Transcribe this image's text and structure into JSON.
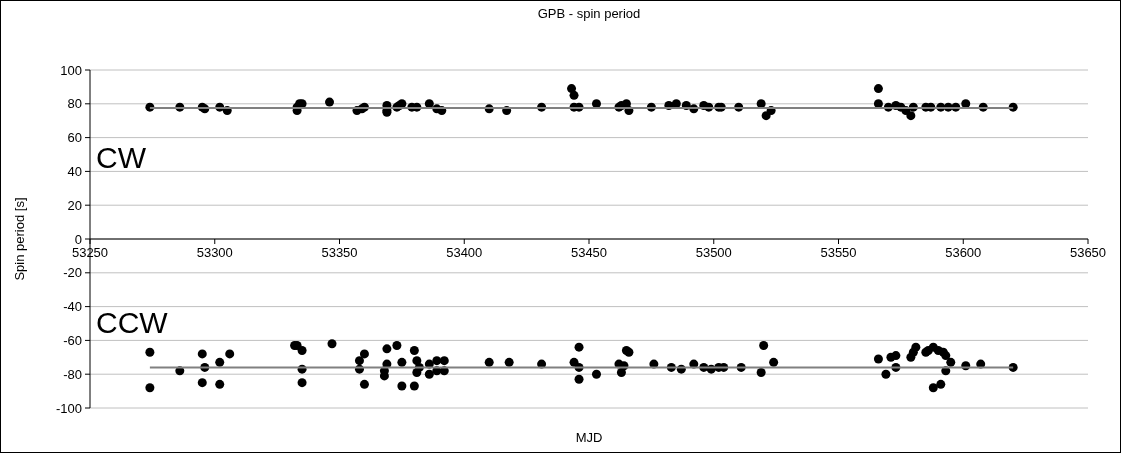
{
  "chart_data": {
    "type": "scatter",
    "title": "GPB - spin period",
    "xlabel": "MJD",
    "ylabel": "Spin period [s]",
    "annotations": [
      "CW",
      "CCW"
    ],
    "xlim": [
      53250,
      53650
    ],
    "xticks": [
      53250,
      53300,
      53350,
      53400,
      53450,
      53500,
      53550,
      53600,
      53650
    ],
    "ylim": [
      -100,
      100
    ],
    "yticks": [
      -100,
      -80,
      -60,
      -40,
      -20,
      0,
      20,
      40,
      60,
      80,
      100
    ],
    "grid": "y",
    "marker": "circle",
    "series": [
      {
        "color": "#000000",
        "x": [
          53274,
          53286,
          53295,
          53296,
          53302,
          53305,
          53333,
          53333,
          53334,
          53335,
          53346,
          53357,
          53359,
          53360,
          53369,
          53369,
          53369,
          53373,
          53374,
          53375,
          53379,
          53381,
          53386,
          53389,
          53391,
          53410,
          53417,
          53431,
          53443,
          53444,
          53444,
          53446,
          53453,
          53462,
          53463,
          53465,
          53466,
          53475,
          53482,
          53485,
          53489,
          53492,
          53496,
          53498,
          53502,
          53503,
          53510,
          53519,
          53521,
          53523,
          53566,
          53566,
          53570,
          53573,
          53575,
          53577,
          53579,
          53580,
          53585,
          53587,
          53591,
          53594,
          53597,
          53601,
          53608,
          53620
        ],
        "values": [
          78,
          78,
          78,
          77,
          78,
          76,
          76,
          78,
          80,
          80,
          81,
          76,
          77,
          78,
          79,
          76,
          75,
          78,
          79,
          80,
          78,
          78,
          80,
          77,
          76,
          77,
          76,
          78,
          89,
          85,
          78,
          78,
          80,
          78,
          79,
          80,
          76,
          78,
          79,
          80,
          79,
          77,
          79,
          78,
          78,
          78,
          78,
          80,
          73,
          76,
          89,
          80,
          78,
          79,
          78,
          76,
          73,
          78,
          78,
          78,
          78,
          78,
          78,
          80,
          78,
          78
        ]
      },
      {
        "color": "#000000",
        "x": [
          53274,
          53274,
          53286,
          53295,
          53296,
          53295,
          53302,
          53302,
          53306,
          53332,
          53333,
          53335,
          53335,
          53335,
          53347,
          53358,
          53358,
          53360,
          53360,
          53369,
          53369,
          53368,
          53368,
          53373,
          53375,
          53375,
          53380,
          53381,
          53380,
          53382,
          53381,
          53386,
          53386,
          53389,
          53389,
          53392,
          53392,
          53410,
          53418,
          53431,
          53446,
          53444,
          53446,
          53446,
          53453,
          53462,
          53464,
          53463,
          53465,
          53466,
          53476,
          53483,
          53487,
          53492,
          53496,
          53499,
          53502,
          53504,
          53511,
          53519,
          53520,
          53524,
          53566,
          53569,
          53571,
          53573,
          53573,
          53579,
          53580,
          53581,
          53585,
          53586,
          53588,
          53590,
          53592,
          53593,
          53595,
          53593,
          53588,
          53591,
          53601,
          53607,
          53620
        ],
        "values": [
          -67,
          -88,
          -78,
          -68,
          -76,
          -85,
          -73,
          -86,
          -68,
          -63,
          -63,
          -66,
          -77,
          -85,
          -62,
          -72,
          -77,
          -68,
          -86,
          -65,
          -74,
          -78,
          -81,
          -63,
          -73,
          -87,
          -66,
          -72,
          -87,
          -76,
          -79,
          -74,
          -80,
          -72,
          -78,
          -72,
          -78,
          -73,
          -73,
          -74,
          -64,
          -73,
          -76,
          -83,
          -80,
          -74,
          -75,
          -79,
          -66,
          -67,
          -74,
          -76,
          -77,
          -74,
          -76,
          -77,
          -76,
          -76,
          -76,
          -79,
          -63,
          -73,
          -71,
          -80,
          -70,
          -76,
          -69,
          -70,
          -67,
          -64,
          -67,
          -66,
          -64,
          -66,
          -67,
          -69,
          -73,
          -78,
          -88,
          -86,
          -75,
          -74,
          -76
        ]
      },
      {
        "type": "line",
        "marker": "none",
        "color": "#808080",
        "x": [
          53274,
          53620
        ],
        "values": [
          77.5,
          77.5
        ]
      },
      {
        "type": "line",
        "marker": "none",
        "color": "#808080",
        "x": [
          53274,
          53620
        ],
        "values": [
          -76,
          -76
        ]
      }
    ]
  }
}
